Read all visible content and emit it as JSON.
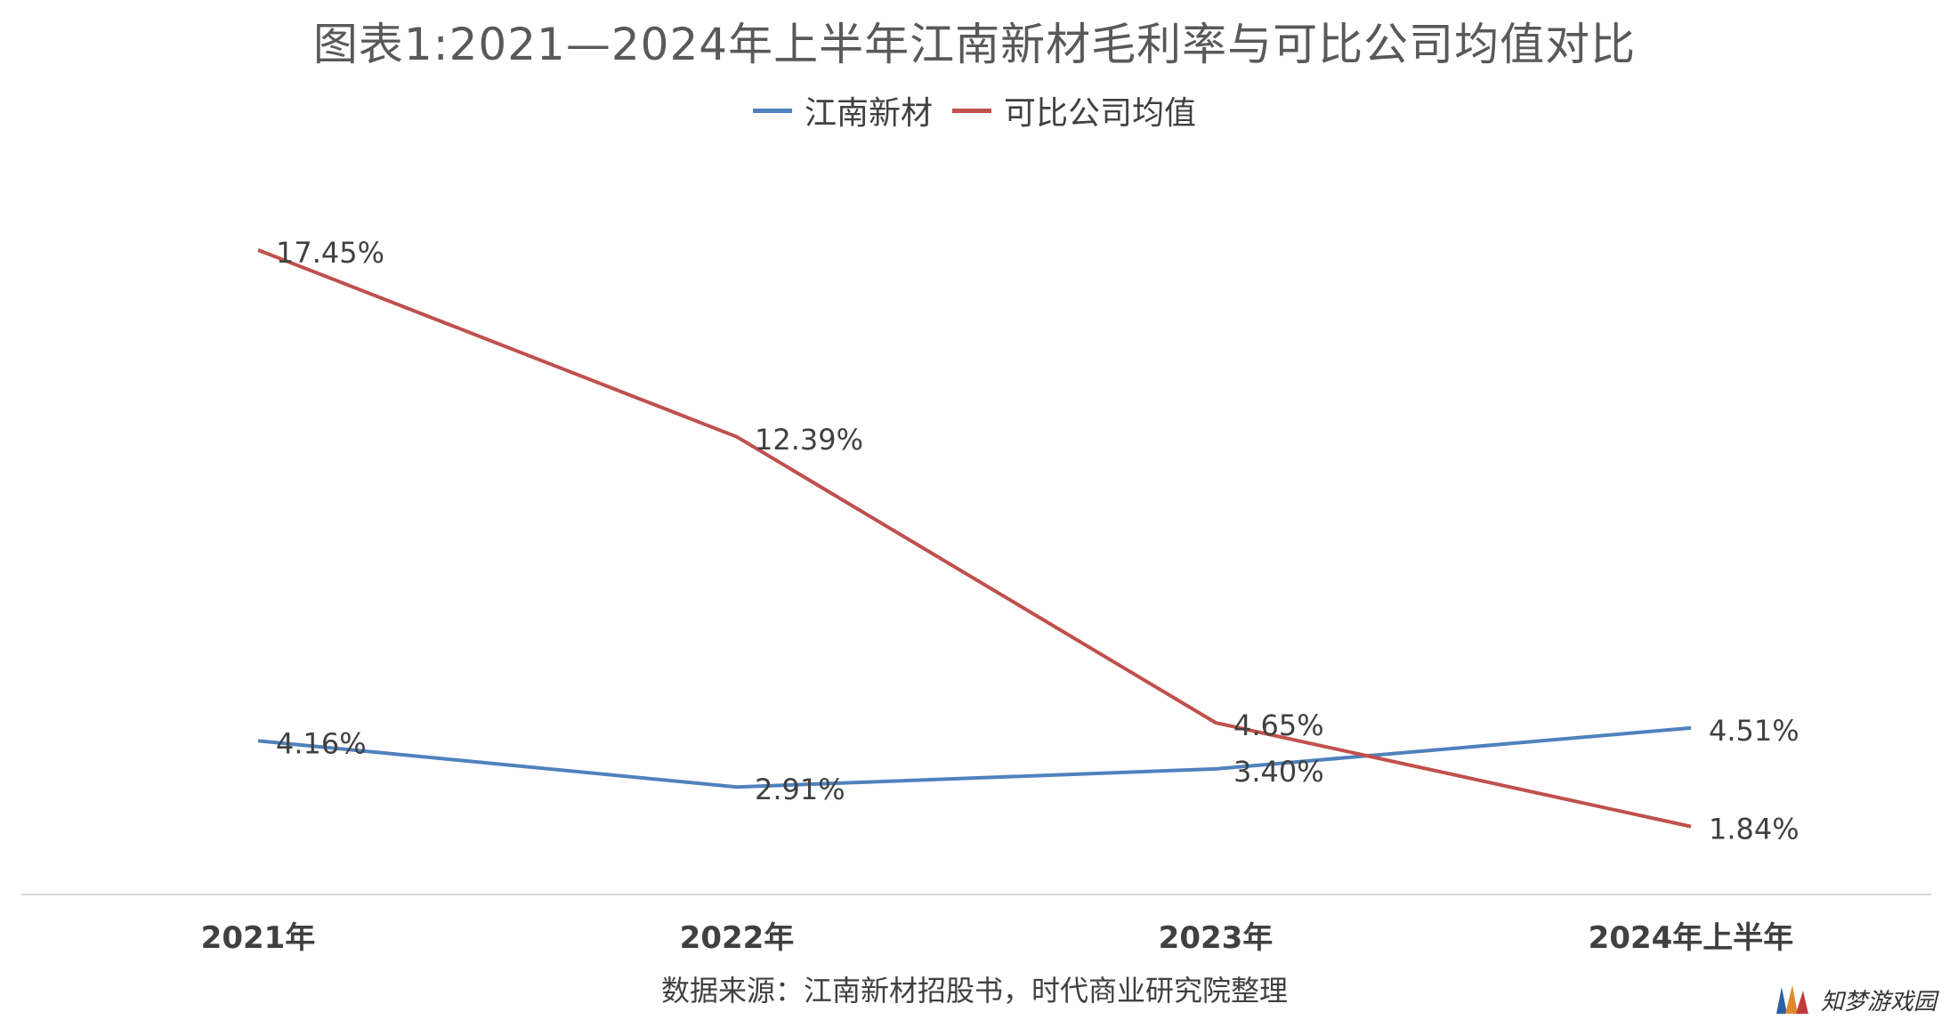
{
  "title": "图表1:2021—2024年上半年江南新材毛利率与可比公司均值对比",
  "source_note": "数据来源：江南新材招股书，时代商业研究院整理",
  "watermark": "知梦游戏园",
  "colors": {
    "series_blue": "#4f81bd",
    "series_red": "#c0504d",
    "axis": "#d9d9d9",
    "text": "#404040"
  },
  "chart_data": {
    "type": "line",
    "title": "图表1:2021—2024年上半年江南新材毛利率与可比公司均值对比",
    "categories": [
      "2021年",
      "2022年",
      "2023年",
      "2024年上半年"
    ],
    "series": [
      {
        "name": "江南新材",
        "values": [
          4.16,
          2.91,
          3.4,
          4.51
        ],
        "labels": [
          "4.16%",
          "2.91%",
          "3.40%",
          "4.51%"
        ],
        "color": "#4f81bd"
      },
      {
        "name": "可比公司均值",
        "values": [
          17.45,
          12.39,
          4.65,
          1.84
        ],
        "labels": [
          "17.45%",
          "12.39%",
          "4.65%",
          "1.84%"
        ],
        "color": "#c0504d"
      }
    ],
    "ylim": [
      0,
      20
    ],
    "grid": false,
    "legend_position": "top-center",
    "xlabel": "",
    "ylabel": ""
  }
}
